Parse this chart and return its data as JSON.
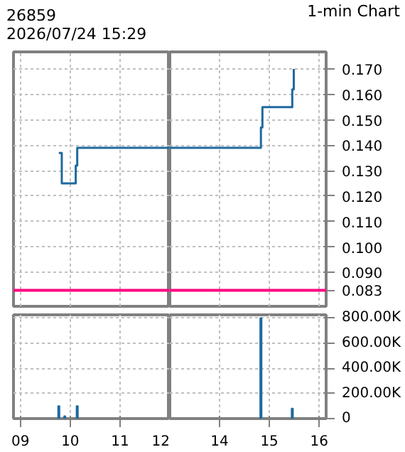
{
  "chart_data": [
    {
      "type": "step",
      "title": "26859",
      "subtitle": "2026/07/24 15:29",
      "x": [
        9.77,
        9.83,
        10.11,
        10.14,
        12.0
      ],
      "series": [
        {
          "color": "#1f6aa0",
          "values": [
            0.137,
            0.125,
            0.132,
            0.139,
            0.139
          ]
        }
      ],
      "xlim": [
        8.86,
        12.0
      ],
      "xticks": [
        9,
        10,
        11,
        12
      ],
      "ylim": [
        0.0767,
        0.1767
      ],
      "yticks": [
        0.083,
        0.09,
        0.1,
        0.11,
        0.12,
        0.13,
        0.14,
        0.15,
        0.16,
        0.17
      ],
      "ref_lines": [
        {
          "axis": "y",
          "value": 0.083,
          "color": "#ff0080"
        }
      ],
      "grid": true,
      "tick_labels": false
    },
    {
      "type": "step",
      "annotations": [
        "1-min Chart"
      ],
      "x": [
        13.0,
        14.83,
        14.86,
        15.46,
        15.49
      ],
      "series": [
        {
          "color": "#1f6aa0",
          "values": [
            0.139,
            0.147,
            0.155,
            0.162,
            0.17
          ]
        }
      ],
      "xlim": [
        13.0,
        16.14
      ],
      "xticks": [
        14,
        15,
        16
      ],
      "ylim": [
        0.0767,
        0.1767
      ],
      "yticks": [
        {
          "value": 0.083,
          "label": "0.083"
        },
        {
          "value": 0.09,
          "label": "0.090"
        },
        {
          "value": 0.1,
          "label": "0.100"
        },
        {
          "value": 0.11,
          "label": "0.110"
        },
        {
          "value": 0.12,
          "label": "0.120"
        },
        {
          "value": 0.13,
          "label": "0.130"
        },
        {
          "value": 0.14,
          "label": "0.140"
        },
        {
          "value": 0.15,
          "label": "0.150"
        },
        {
          "value": 0.16,
          "label": "0.160"
        },
        {
          "value": 0.17,
          "label": "0.170"
        }
      ],
      "ref_lines": [
        {
          "axis": "y",
          "value": 0.083,
          "color": "#ff0080"
        }
      ],
      "grid": true,
      "tick_labels": "y"
    },
    {
      "type": "bar",
      "x": [
        9.77,
        9.89,
        10.14
      ],
      "series": [
        {
          "color": "#1f6aa0",
          "values": [
            100000,
            20000,
            100000
          ]
        }
      ],
      "xlim": [
        8.86,
        12.0
      ],
      "xticks": [
        {
          "value": 9,
          "label": "09"
        },
        10,
        11,
        12
      ],
      "ylim": [
        0,
        825000
      ],
      "yticks": [
        0,
        200000,
        400000,
        600000,
        800000
      ],
      "grid": true,
      "tick_labels": "x"
    },
    {
      "type": "bar",
      "x": [
        14.83,
        15.46
      ],
      "series": [
        {
          "color": "#1f6aa0",
          "values": [
            800000,
            80000
          ]
        }
      ],
      "xlim": [
        13.0,
        16.14
      ],
      "xticks": [
        14,
        15,
        16
      ],
      "ylim": [
        0,
        825000
      ],
      "yticks": [
        {
          "value": 0,
          "label": "0"
        },
        {
          "value": 200000,
          "label": "200.00K"
        },
        {
          "value": 400000,
          "label": "400.00K"
        },
        {
          "value": 600000,
          "label": "600.00K"
        },
        {
          "value": 800000,
          "label": "800.00K"
        }
      ],
      "grid": true
    }
  ]
}
